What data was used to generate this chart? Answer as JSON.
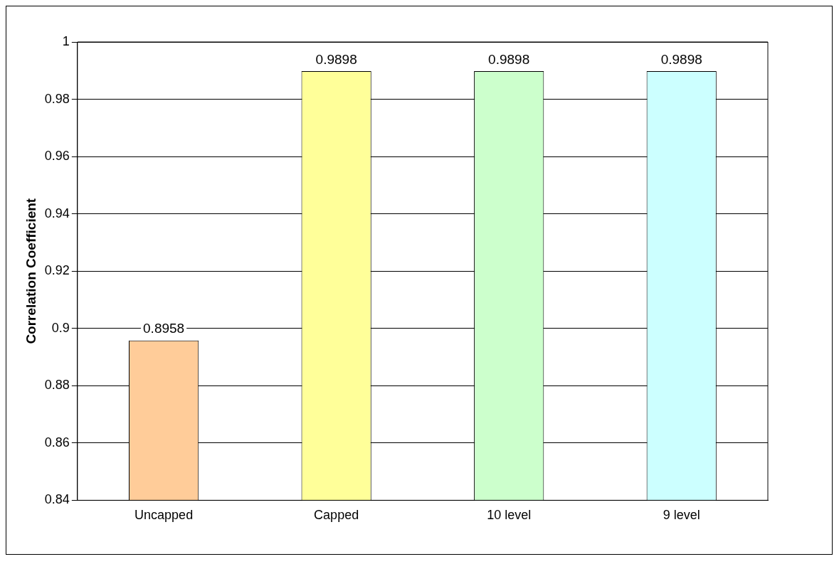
{
  "chart_data": {
    "type": "bar",
    "ylabel": "Correlation Coefficient",
    "categories": [
      "Uncapped",
      "Capped",
      "10 level",
      "9 level"
    ],
    "values": [
      0.8958,
      0.9898,
      0.9898,
      0.9898
    ],
    "colors": [
      "#ffcc99",
      "#ffff99",
      "#ccffcc",
      "#ccffff"
    ],
    "ylim": [
      0.84,
      1
    ],
    "yticks": [
      0.84,
      0.86,
      0.88,
      0.9,
      0.92,
      0.94,
      0.96,
      0.98,
      1
    ],
    "grid": "y",
    "data_labels": true
  }
}
